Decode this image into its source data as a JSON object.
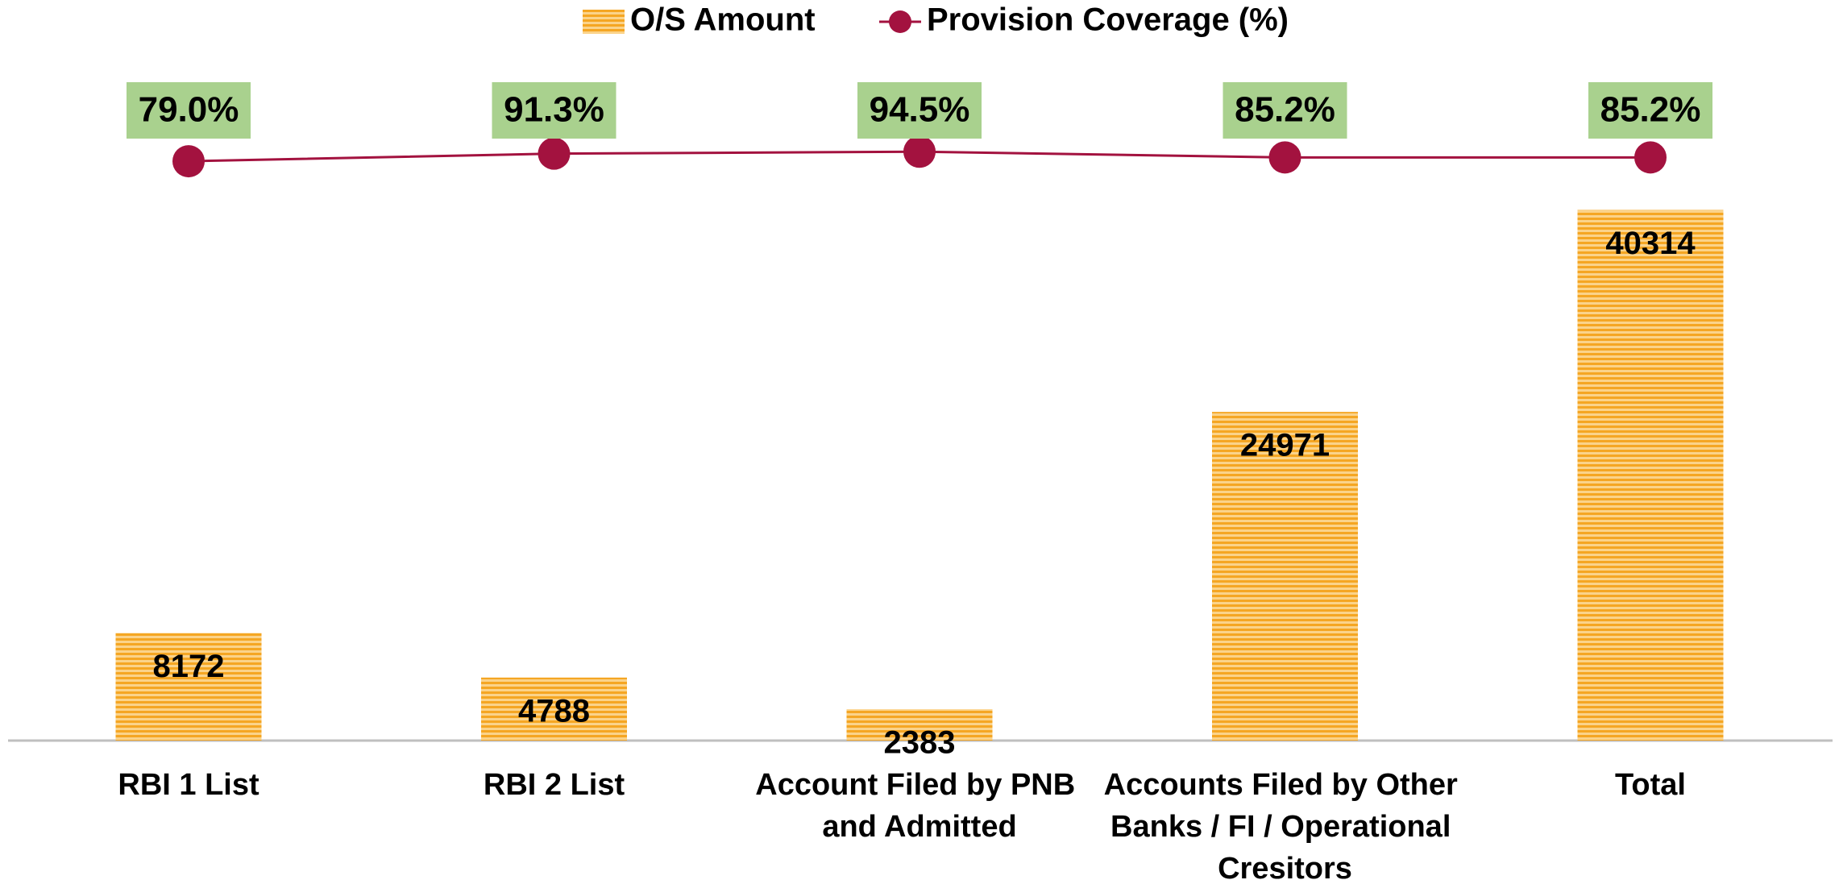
{
  "chart_data": {
    "type": "bar",
    "categories": [
      "RBI 1 List",
      "RBI 2 List",
      "Account Filed by PNB and Admitted",
      "Accounts Filed by Other Banks / FI / Operational Cresitors",
      "Total"
    ],
    "series": [
      {
        "name": "O/S Amount",
        "color": "#f5a623",
        "values": [
          8172,
          4788,
          2383,
          24971,
          40314
        ]
      },
      {
        "name": "Provision Coverage (%)",
        "type": "line",
        "axis": "y2",
        "color": "#a3123f",
        "values": [
          79.0,
          91.3,
          94.5,
          85.2,
          85.2
        ],
        "value_labels": [
          "79.0%",
          "91.3%",
          "94.5%",
          "85.2%",
          "85.2%"
        ]
      }
    ],
    "ylim": [
      0,
      45000
    ],
    "y2lim": [
      -860,
      100
    ],
    "legend": "top"
  }
}
